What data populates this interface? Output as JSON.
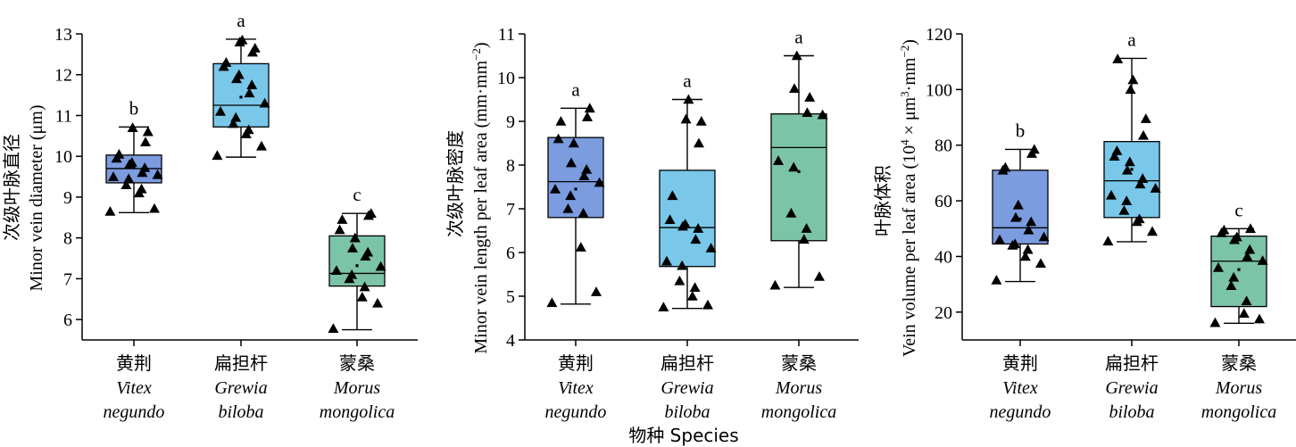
{
  "x_axis_shared_label": "物种 Species",
  "panel_colors": [
    "#7b9cdf",
    "#79c8ea",
    "#7cc4a8"
  ],
  "chart_data": [
    {
      "type": "box",
      "ylabel_cn": "次级叶脉直径",
      "ylabel_en": "Minor vein diameter (μm)",
      "ylim": [
        5.5,
        13
      ],
      "yticks": [
        6,
        7,
        8,
        9,
        10,
        11,
        12,
        13
      ],
      "categories": [
        {
          "cn": "黄荆",
          "en1": "Vitex",
          "en2": "negundo"
        },
        {
          "cn": "扁担杆",
          "en1": "Grewia",
          "en2": "biloba"
        },
        {
          "cn": "蒙桑",
          "en1": "Morus",
          "en2": "mongolica"
        }
      ],
      "boxes": [
        {
          "min": 8.62,
          "q1": 9.35,
          "median": 9.7,
          "q3": 10.03,
          "max": 10.72,
          "mean": 9.72,
          "sig": "b",
          "points": [
            8.65,
            8.72,
            9.1,
            9.2,
            9.3,
            9.45,
            9.5,
            9.55,
            9.6,
            9.72,
            9.8,
            9.85,
            9.95,
            10.05,
            10.35,
            10.6,
            10.7
          ]
        },
        {
          "min": 9.98,
          "q1": 10.72,
          "median": 11.25,
          "q3": 12.27,
          "max": 12.87,
          "mean": 11.45,
          "sig": "a",
          "points": [
            10.02,
            10.25,
            10.55,
            10.65,
            10.8,
            10.95,
            11.1,
            11.3,
            11.55,
            11.75,
            11.9,
            12.0,
            12.2,
            12.3,
            12.55,
            12.65,
            12.8,
            12.85
          ]
        },
        {
          "min": 5.75,
          "q1": 6.82,
          "median": 7.13,
          "q3": 8.05,
          "max": 8.6,
          "mean": 7.32,
          "sig": "c",
          "points": [
            5.78,
            6.4,
            6.55,
            6.8,
            7.0,
            7.1,
            7.2,
            7.3,
            7.55,
            7.65,
            7.75,
            8.0,
            8.2,
            8.45,
            8.55,
            8.6
          ]
        }
      ]
    },
    {
      "type": "box",
      "ylabel_cn": "次级叶脉密度",
      "ylabel_en": "Minor vein length per leaf area (mm·mm",
      "ylabel_sup": "−2",
      "ylabel_close": ")",
      "ylim": [
        4,
        11
      ],
      "yticks": [
        4,
        5,
        6,
        7,
        8,
        9,
        10,
        11
      ],
      "categories": [
        {
          "cn": "黄荆",
          "en1": "Vitex",
          "en2": "negundo"
        },
        {
          "cn": "扁担杆",
          "en1": "Grewia",
          "en2": "biloba"
        },
        {
          "cn": "蒙桑",
          "en1": "Morus",
          "en2": "mongolica"
        }
      ],
      "boxes": [
        {
          "min": 4.82,
          "q1": 6.8,
          "median": 7.62,
          "q3": 8.63,
          "max": 9.3,
          "mean": 7.45,
          "sig": "a",
          "points": [
            4.85,
            5.1,
            6.12,
            6.9,
            7.0,
            7.3,
            7.45,
            7.6,
            7.75,
            7.9,
            8.05,
            8.5,
            8.6,
            9.0,
            9.1,
            9.3
          ]
        },
        {
          "min": 4.72,
          "q1": 5.68,
          "median": 6.57,
          "q3": 7.88,
          "max": 9.5,
          "mean": 6.62,
          "sig": "a",
          "points": [
            4.75,
            4.8,
            5.0,
            5.2,
            5.35,
            5.7,
            5.8,
            6.1,
            6.3,
            6.55,
            6.6,
            6.65,
            6.75,
            7.3,
            8.5,
            9.0,
            9.05,
            9.5
          ]
        },
        {
          "min": 5.2,
          "q1": 6.27,
          "median": 8.4,
          "q3": 9.17,
          "max": 10.5,
          "mean": 7.85,
          "sig": "a",
          "points": [
            5.25,
            5.45,
            6.3,
            6.55,
            6.9,
            7.95,
            8.1,
            9.15,
            9.2,
            9.55,
            9.75,
            10.5
          ]
        }
      ]
    },
    {
      "type": "box",
      "ylabel_cn": "叶脉体积",
      "ylabel_en_pre": "Vein volume per leaf area (10",
      "ylabel_sup1": "4",
      "ylabel_mid": " × μm",
      "ylabel_sup2": "3",
      "ylabel_mid2": "·mm",
      "ylabel_sup3": "−2",
      "ylabel_close": ")",
      "ylim": [
        10,
        120
      ],
      "yticks": [
        20,
        40,
        60,
        80,
        100,
        120
      ],
      "categories": [
        {
          "cn": "黄荆",
          "en1": "Vitex",
          "en2": "negundo"
        },
        {
          "cn": "扁担杆",
          "en1": "Grewia",
          "en2": "biloba"
        },
        {
          "cn": "蒙桑",
          "en1": "Morus",
          "en2": "mongolica"
        }
      ],
      "boxes": [
        {
          "min": 31,
          "q1": 44.5,
          "median": 50.3,
          "q3": 71,
          "max": 78.5,
          "mean": 53.5,
          "sig": "b",
          "points": [
            31.5,
            37.5,
            40,
            42.5,
            44,
            44.5,
            46,
            47,
            49.5,
            52.5,
            54,
            58.5,
            71,
            72,
            77,
            78.5
          ]
        },
        {
          "min": 45.3,
          "q1": 54,
          "median": 67.2,
          "q3": 81.3,
          "max": 111.2,
          "mean": 71.3,
          "sig": "a",
          "points": [
            45.5,
            49,
            52.5,
            53.5,
            56.5,
            60,
            62,
            64.5,
            66,
            68,
            71,
            74,
            76,
            78,
            83.5,
            89.5,
            100,
            103.5,
            111
          ]
        },
        {
          "min": 16,
          "q1": 22,
          "median": 38.3,
          "q3": 47.3,
          "max": 50,
          "mean": 35.3,
          "sig": "c",
          "points": [
            16.2,
            17.5,
            19.5,
            24,
            29.5,
            32.5,
            36,
            38.5,
            40,
            42.5,
            46,
            47,
            48.5,
            49.5,
            50
          ]
        }
      ]
    }
  ]
}
